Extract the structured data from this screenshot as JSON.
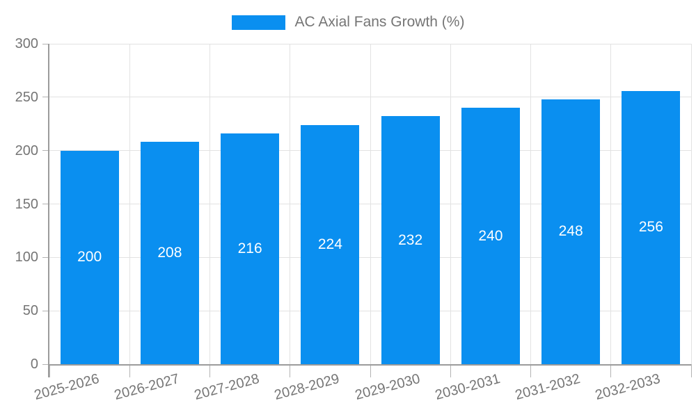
{
  "chart_data": {
    "type": "bar",
    "title": "",
    "legend_label": "AC Axial Fans Growth (%)",
    "legend_position": "top-center",
    "categories": [
      "2025-2026",
      "2026-2027",
      "2027-2028",
      "2028-2029",
      "2029-2030",
      "2030-2031",
      "2031-2032",
      "2032-2033"
    ],
    "values": [
      200,
      208,
      216,
      224,
      232,
      240,
      248,
      256
    ],
    "xlabel": "",
    "ylabel": "",
    "ylim": [
      0,
      300
    ],
    "ytick_step": 50,
    "ytick_labels": [
      "0",
      "50",
      "100",
      "150",
      "200",
      "250",
      "300"
    ],
    "grid": true,
    "value_labels_inside_bars": true,
    "colors": {
      "bar": "#0a8ff0",
      "bar_value_text": "#ffffff",
      "grid": "#e2e2e2",
      "axis": "#9b9b9b",
      "tick": "#b3b3b3",
      "text": "#757575",
      "background": "#ffffff"
    }
  }
}
